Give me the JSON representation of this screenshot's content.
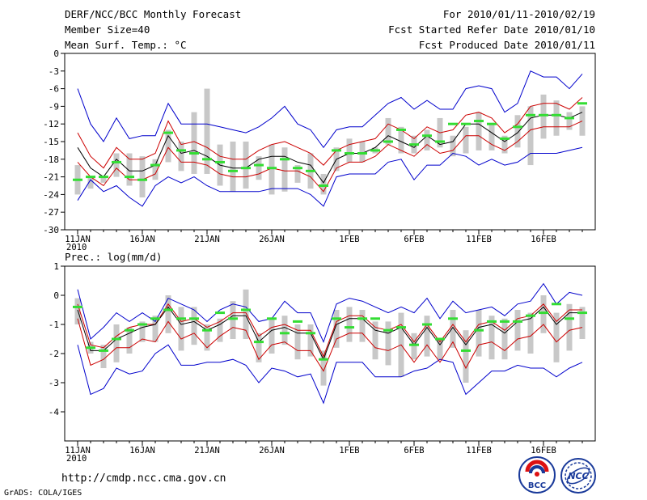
{
  "header": {
    "title": "DERF/NCC/BCC Monthly Forecast",
    "member": "Member Size=40",
    "variable": "Mean Surf. Temp.: °C",
    "period": "For 2010/01/11-2010/02/19",
    "started": "Fcst Started Refer Date 2010/01/10",
    "produced": "Fcst Produced Date 2010/01/11"
  },
  "footer": {
    "url": "http://cmdp.ncc.cma.gov.cn",
    "grads": "GrADS: COLA/IGES",
    "logo_bcc": "BCC",
    "logo_ncc": "NCC"
  },
  "colors": {
    "envelope": "#0000cc",
    "spread": "#cc0000",
    "mean": "#000000",
    "box": "#c8c8c8",
    "marker": "#33dd33"
  },
  "x_ticks": [
    {
      "day": 1,
      "label": "11JAN",
      "sub": "2010"
    },
    {
      "day": 6,
      "label": "16JAN",
      "sub": ""
    },
    {
      "day": 11,
      "label": "21JAN",
      "sub": ""
    },
    {
      "day": 16,
      "label": "26JAN",
      "sub": ""
    },
    {
      "day": 22,
      "label": "1FEB",
      "sub": ""
    },
    {
      "day": 27,
      "label": "6FEB",
      "sub": ""
    },
    {
      "day": 32,
      "label": "11FEB",
      "sub": ""
    },
    {
      "day": 37,
      "label": "16FEB",
      "sub": ""
    }
  ],
  "chart_data": [
    {
      "type": "line",
      "title": "Mean Surf. Temp.: °C",
      "ylim": [
        -30,
        0
      ],
      "yticks": [
        0,
        -3,
        -6,
        -9,
        -12,
        -15,
        -18,
        -21,
        -24,
        -27,
        -30
      ],
      "x": [
        1,
        2,
        3,
        4,
        5,
        6,
        7,
        8,
        9,
        10,
        11,
        12,
        13,
        14,
        15,
        16,
        17,
        18,
        19,
        20,
        21,
        22,
        23,
        24,
        25,
        26,
        27,
        28,
        29,
        30,
        31,
        32,
        33,
        34,
        35,
        36,
        37,
        38,
        39,
        40
      ],
      "series": [
        {
          "name": "max",
          "values": [
            -6,
            -12,
            -15,
            -11,
            -14.5,
            -14,
            -14,
            -8.5,
            -12,
            -12,
            -12,
            -12.5,
            -13,
            -13.5,
            -12.5,
            -11,
            -9,
            -12,
            -13,
            -16,
            -13,
            -12.5,
            -12.5,
            -10.5,
            -8.5,
            -7.5,
            -9.5,
            -8,
            -9.5,
            -9.5,
            -6,
            -5.5,
            -6,
            -10,
            -8.5,
            -3,
            -4,
            -4,
            -6,
            -3.5
          ]
        },
        {
          "name": "upper",
          "values": [
            -13.5,
            -17.5,
            -19.5,
            -16,
            -18,
            -18,
            -17,
            -11.5,
            -15.5,
            -15,
            -16,
            -17.5,
            -18,
            -18,
            -16.5,
            -15.5,
            -15,
            -16,
            -17,
            -19,
            -16.5,
            -15.5,
            -15,
            -14.5,
            -12,
            -13,
            -14.5,
            -12.5,
            -13.5,
            -13,
            -10.5,
            -10,
            -11,
            -13.5,
            -12,
            -9,
            -8.5,
            -8.5,
            -9.5,
            -7.5
          ]
        },
        {
          "name": "mean",
          "values": [
            -16,
            -19.5,
            -21,
            -18,
            -20,
            -20,
            -19,
            -14,
            -17,
            -16.5,
            -17.5,
            -19,
            -19.5,
            -19.5,
            -18,
            -17.5,
            -17.5,
            -18.5,
            -19,
            -22,
            -18,
            -17,
            -17,
            -16,
            -14,
            -15,
            -16,
            -14,
            -15.5,
            -15,
            -12,
            -12,
            -13.5,
            -15,
            -13.5,
            -11,
            -10.5,
            -10.5,
            -11,
            -10
          ]
        },
        {
          "name": "lower",
          "values": [
            -18.5,
            -21,
            -22.5,
            -19.5,
            -21.5,
            -21.5,
            -20.5,
            -16,
            -18.5,
            -18.5,
            -19,
            -20.5,
            -21,
            -21,
            -20.5,
            -19.5,
            -20,
            -20,
            -21,
            -23.5,
            -19.5,
            -18.5,
            -18.5,
            -17.5,
            -15.5,
            -16.5,
            -17.5,
            -15.5,
            -17,
            -16.5,
            -14,
            -14,
            -15.5,
            -16.5,
            -15,
            -13,
            -12.5,
            -12.5,
            -12.5,
            -11.5
          ]
        },
        {
          "name": "min",
          "values": [
            -25,
            -21.5,
            -23.5,
            -22.5,
            -24.5,
            -26,
            -22.5,
            -21,
            -22,
            -21,
            -22.5,
            -23.5,
            -23.5,
            -23.5,
            -23.5,
            -23,
            -23,
            -23,
            -24,
            -26,
            -21,
            -20.5,
            -20.5,
            -20.5,
            -18.5,
            -18,
            -21.5,
            -19,
            -19,
            -17,
            -17.5,
            -19,
            -18,
            -19,
            -18.5,
            -17,
            -17,
            -17,
            -16.5,
            -16
          ]
        },
        {
          "name": "box_top",
          "values": [
            -19,
            -21,
            -21,
            -17,
            -17,
            -17.5,
            -18,
            -13,
            -15,
            -10,
            -6,
            -15.5,
            -15,
            -15,
            -17.5,
            -15.5,
            -16,
            -19,
            -17,
            -20.5,
            -16,
            -14.5,
            -15,
            -16,
            -11,
            -12.5,
            -14,
            -13,
            -11,
            -14,
            -12.5,
            -10,
            -12,
            -14,
            -10.5,
            -9,
            -7,
            -8,
            -10,
            -9
          ]
        },
        {
          "name": "box_bottom",
          "values": [
            -24,
            -23,
            -22,
            -21,
            -22.5,
            -24.5,
            -21.5,
            -18.5,
            -20,
            -20.5,
            -20.5,
            -22.5,
            -23.5,
            -23,
            -21.5,
            -24,
            -23.5,
            -22,
            -23,
            -24,
            -20,
            -18.5,
            -18.5,
            -17,
            -15.5,
            -17,
            -17,
            -16.5,
            -16,
            -17.5,
            -17,
            -16.5,
            -16.5,
            -17,
            -16,
            -19,
            -14.5,
            -14,
            -13,
            -14
          ]
        },
        {
          "name": "marker",
          "values": [
            -21.5,
            -21,
            -21,
            -18.5,
            -21,
            -21.5,
            -19,
            -13.5,
            -16.5,
            -17,
            -18,
            -18.5,
            -20,
            -19.5,
            -19,
            -19.5,
            -18,
            -19.5,
            -20,
            -22.5,
            -16.5,
            -17,
            -17,
            -16.5,
            -15,
            -13,
            -15.5,
            -14,
            -15,
            -12,
            -12,
            -11.5,
            -12,
            -14.5,
            -12.5,
            -10.5,
            -10.5,
            -10.5,
            -11,
            -8.5
          ]
        }
      ]
    },
    {
      "type": "line",
      "title": "Prec.: log(mm/d)",
      "ylim": [
        -5,
        1
      ],
      "yticks": [
        1,
        0,
        -1,
        -2,
        -3,
        -4
      ],
      "x": [
        1,
        2,
        3,
        4,
        5,
        6,
        7,
        8,
        9,
        10,
        11,
        12,
        13,
        14,
        15,
        16,
        17,
        18,
        19,
        20,
        21,
        22,
        23,
        24,
        25,
        26,
        27,
        28,
        29,
        30,
        31,
        32,
        33,
        34,
        35,
        36,
        37,
        38,
        39,
        40
      ],
      "series": [
        {
          "name": "max",
          "values": [
            0.2,
            -1.5,
            -1.1,
            -0.6,
            -0.9,
            -0.6,
            -0.9,
            -0.1,
            -0.3,
            -0.5,
            -0.9,
            -0.5,
            -0.3,
            -0.4,
            -0.9,
            -0.8,
            -0.2,
            -0.6,
            -0.6,
            -1.6,
            -0.3,
            -0.1,
            -0.2,
            -0.4,
            -0.6,
            -0.4,
            -0.6,
            -0.1,
            -0.8,
            -0.2,
            -0.6,
            -0.5,
            -0.4,
            -0.7,
            -0.3,
            -0.2,
            0.4,
            -0.3,
            0.1,
            0.0
          ]
        },
        {
          "name": "upper",
          "values": [
            -0.3,
            -1.7,
            -1.8,
            -1.4,
            -1.1,
            -1.0,
            -1.0,
            -0.3,
            -0.9,
            -0.8,
            -1.1,
            -0.9,
            -0.6,
            -0.6,
            -1.4,
            -1.1,
            -1.0,
            -1.2,
            -1.2,
            -2.1,
            -0.9,
            -0.7,
            -0.7,
            -1.1,
            -1.2,
            -1.0,
            -1.6,
            -1.0,
            -1.6,
            -1.0,
            -1.6,
            -1.0,
            -0.9,
            -1.2,
            -0.8,
            -0.7,
            -0.3,
            -0.9,
            -0.5,
            -0.5
          ]
        },
        {
          "name": "mean",
          "values": [
            -0.5,
            -1.9,
            -1.9,
            -1.5,
            -1.3,
            -1.1,
            -1.0,
            -0.4,
            -1.0,
            -0.9,
            -1.2,
            -1.0,
            -0.7,
            -0.7,
            -1.6,
            -1.2,
            -1.1,
            -1.3,
            -1.3,
            -2.2,
            -1.0,
            -0.8,
            -0.8,
            -1.2,
            -1.3,
            -1.1,
            -1.7,
            -1.1,
            -1.7,
            -1.1,
            -1.7,
            -1.1,
            -1.0,
            -1.3,
            -0.9,
            -0.8,
            -0.4,
            -1.0,
            -0.6,
            -0.6
          ]
        },
        {
          "name": "lower",
          "values": [
            -0.8,
            -2.4,
            -2.2,
            -1.8,
            -1.8,
            -1.5,
            -1.6,
            -0.9,
            -1.5,
            -1.3,
            -1.8,
            -1.4,
            -1.1,
            -1.2,
            -2.2,
            -1.7,
            -1.6,
            -1.9,
            -1.9,
            -2.6,
            -1.5,
            -1.3,
            -1.3,
            -1.8,
            -1.9,
            -1.7,
            -2.3,
            -1.7,
            -2.3,
            -1.6,
            -2.5,
            -1.7,
            -1.6,
            -1.9,
            -1.5,
            -1.4,
            -1.0,
            -1.6,
            -1.2,
            -1.1
          ]
        },
        {
          "name": "min",
          "values": [
            -1.7,
            -3.4,
            -3.2,
            -2.5,
            -2.7,
            -2.6,
            -2.0,
            -1.7,
            -2.4,
            -2.4,
            -2.3,
            -2.3,
            -2.2,
            -2.4,
            -3.0,
            -2.5,
            -2.6,
            -2.8,
            -2.7,
            -3.7,
            -2.3,
            -2.3,
            -2.3,
            -2.8,
            -2.8,
            -2.8,
            -2.6,
            -2.5,
            -2.2,
            -2.3,
            -3.4,
            -3.0,
            -2.6,
            -2.6,
            -2.4,
            -2.5,
            -2.5,
            -2.8,
            -2.5,
            -2.3
          ]
        },
        {
          "name": "box_top",
          "values": [
            -0.1,
            -1.6,
            -1.7,
            -1.0,
            -1.1,
            -0.9,
            -0.7,
            0.0,
            -0.4,
            -0.4,
            -1.0,
            -0.8,
            -0.2,
            0.2,
            -1.3,
            -0.8,
            -0.7,
            -1.0,
            -1.0,
            -1.9,
            -0.5,
            -0.4,
            -0.5,
            -0.9,
            -0.9,
            -0.6,
            -1.3,
            -0.7,
            -1.5,
            -0.5,
            -1.2,
            -0.5,
            -0.7,
            -0.8,
            -0.5,
            -0.6,
            0.0,
            -0.6,
            -0.3,
            -0.4
          ]
        },
        {
          "name": "box_bottom",
          "values": [
            -1.0,
            -2.0,
            -2.5,
            -2.3,
            -2.0,
            -1.6,
            -1.6,
            -1.3,
            -1.9,
            -1.7,
            -1.9,
            -1.6,
            -1.5,
            -1.5,
            -2.3,
            -2.0,
            -1.7,
            -2.2,
            -2.1,
            -3.1,
            -1.8,
            -1.6,
            -1.6,
            -2.2,
            -2.4,
            -2.8,
            -2.2,
            -2.1,
            -2.2,
            -1.8,
            -3.0,
            -2.1,
            -2.2,
            -2.2,
            -1.9,
            -2.0,
            -1.3,
            -2.3,
            -1.9,
            -1.5
          ]
        },
        {
          "name": "marker",
          "values": [
            -0.4,
            -1.8,
            -1.9,
            -1.5,
            -1.2,
            -1.0,
            -0.8,
            -0.5,
            -0.8,
            -0.8,
            -1.2,
            -0.6,
            -0.8,
            -0.5,
            -1.6,
            -0.8,
            -1.3,
            -0.9,
            -1.3,
            -2.2,
            -0.8,
            -1.1,
            -0.8,
            -0.8,
            -1.2,
            -1.1,
            -1.7,
            -1.0,
            -1.5,
            -0.8,
            -1.9,
            -1.2,
            -0.9,
            -0.9,
            -0.9,
            -0.7,
            -0.6,
            -0.3,
            -0.8,
            -0.6
          ]
        }
      ]
    }
  ]
}
